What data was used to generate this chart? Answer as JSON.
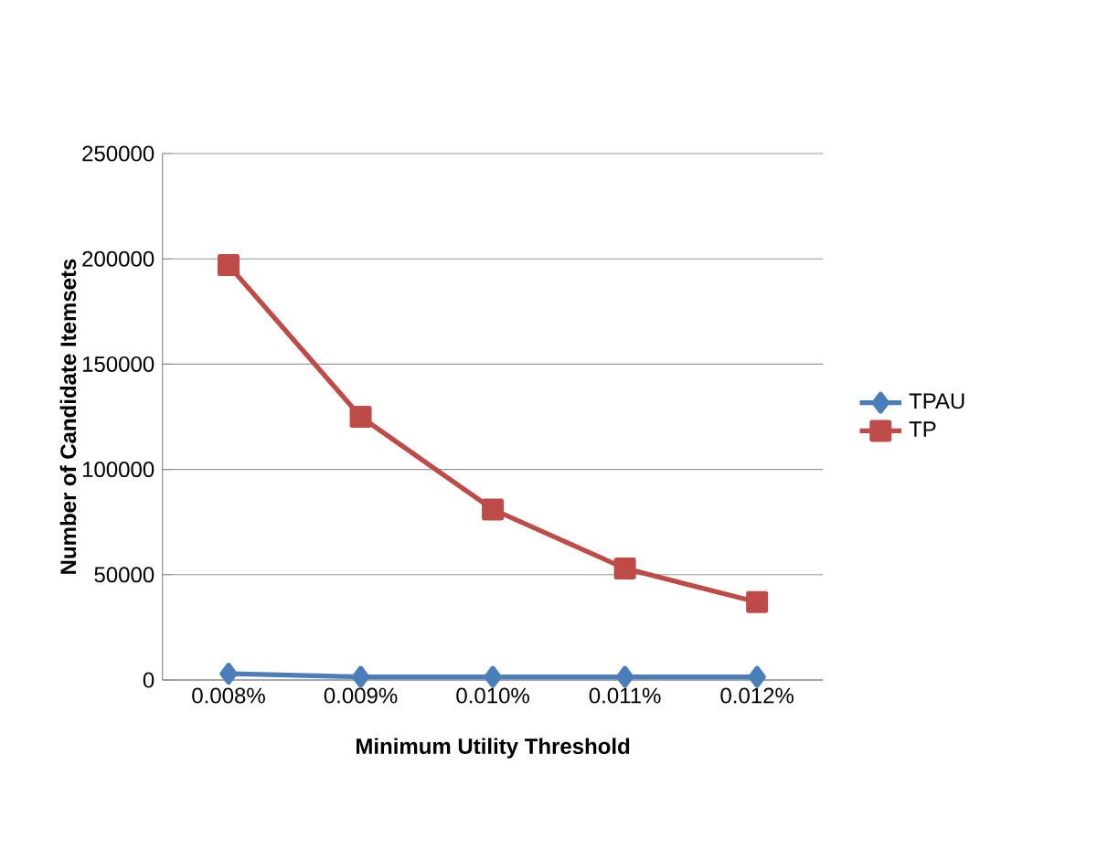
{
  "chart_data": {
    "type": "line",
    "xlabel": "Minimum Utility Threshold",
    "ylabel": "Number of Candidate  Itemsets",
    "categories": [
      "0.008%",
      "0.009%",
      "0.010%",
      "0.011%",
      "0.012%"
    ],
    "series": [
      {
        "name": "TPAU",
        "color": "#4a7ebb",
        "marker": "diamond",
        "values": [
          3000,
          1500,
          1500,
          1500,
          1500
        ]
      },
      {
        "name": "TP",
        "color": "#be4b48",
        "marker": "square",
        "values": [
          197000,
          125000,
          81000,
          53000,
          37000
        ]
      }
    ],
    "ylim": [
      0,
      250000
    ],
    "yticks": [
      0,
      50000,
      100000,
      150000,
      200000,
      250000
    ],
    "grid": "y",
    "legend": "right",
    "line_style": "solid"
  }
}
